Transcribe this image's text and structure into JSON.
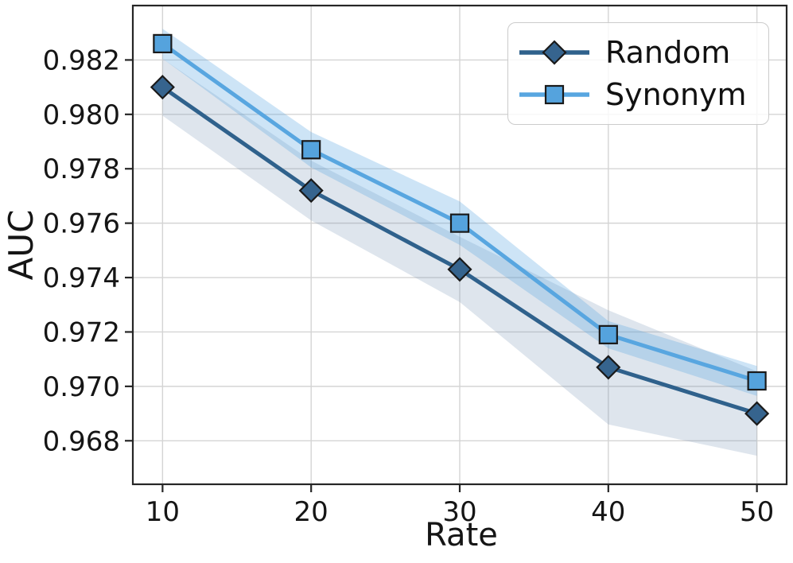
{
  "chart_data": {
    "type": "line",
    "title": "",
    "xlabel": "Rate",
    "ylabel": "AUC",
    "x": [
      10,
      20,
      30,
      40,
      50
    ],
    "xlim": [
      8,
      52
    ],
    "ylim": [
      0.9664,
      0.984
    ],
    "xticks": [
      10,
      20,
      30,
      40,
      50
    ],
    "xtick_labels": [
      "10",
      "20",
      "30",
      "40",
      "50"
    ],
    "yticks": [
      0.982,
      0.98,
      0.978,
      0.976,
      0.974,
      0.972,
      0.97,
      0.968
    ],
    "ytick_labels": [
      "0.982",
      "0.980",
      "0.978",
      "0.976",
      "0.974",
      "0.972",
      "0.970",
      "0.968"
    ],
    "grid": true,
    "legend_position": "upper-right",
    "series": [
      {
        "name": "Random",
        "marker": "diamond",
        "line_color": "#2f618c",
        "marker_fill": "#36648e",
        "marker_edge": "#1a1a1a",
        "values": [
          0.981,
          0.9772,
          0.9743,
          0.9707,
          0.969
        ],
        "band_halfwidth": [
          0.00105,
          0.0011,
          0.0012,
          0.0021,
          0.00155
        ],
        "band_color": "#7591b5",
        "band_opacity": 0.24
      },
      {
        "name": "Synonym",
        "marker": "square",
        "line_color": "#58a6e0",
        "marker_fill": "#55a3dd",
        "marker_edge": "#1a1a1a",
        "values": [
          0.9826,
          0.9787,
          0.976,
          0.9719,
          0.9702
        ],
        "band_halfwidth": [
          0.00055,
          0.00065,
          0.0008,
          0.0005,
          0.00055
        ],
        "band_color": "#58a6e0",
        "band_opacity": 0.3
      }
    ],
    "style": {
      "grid_color": "#d4d4d4",
      "spine_color": "#262626",
      "text_color": "#151515",
      "background": "#ffffff"
    }
  }
}
